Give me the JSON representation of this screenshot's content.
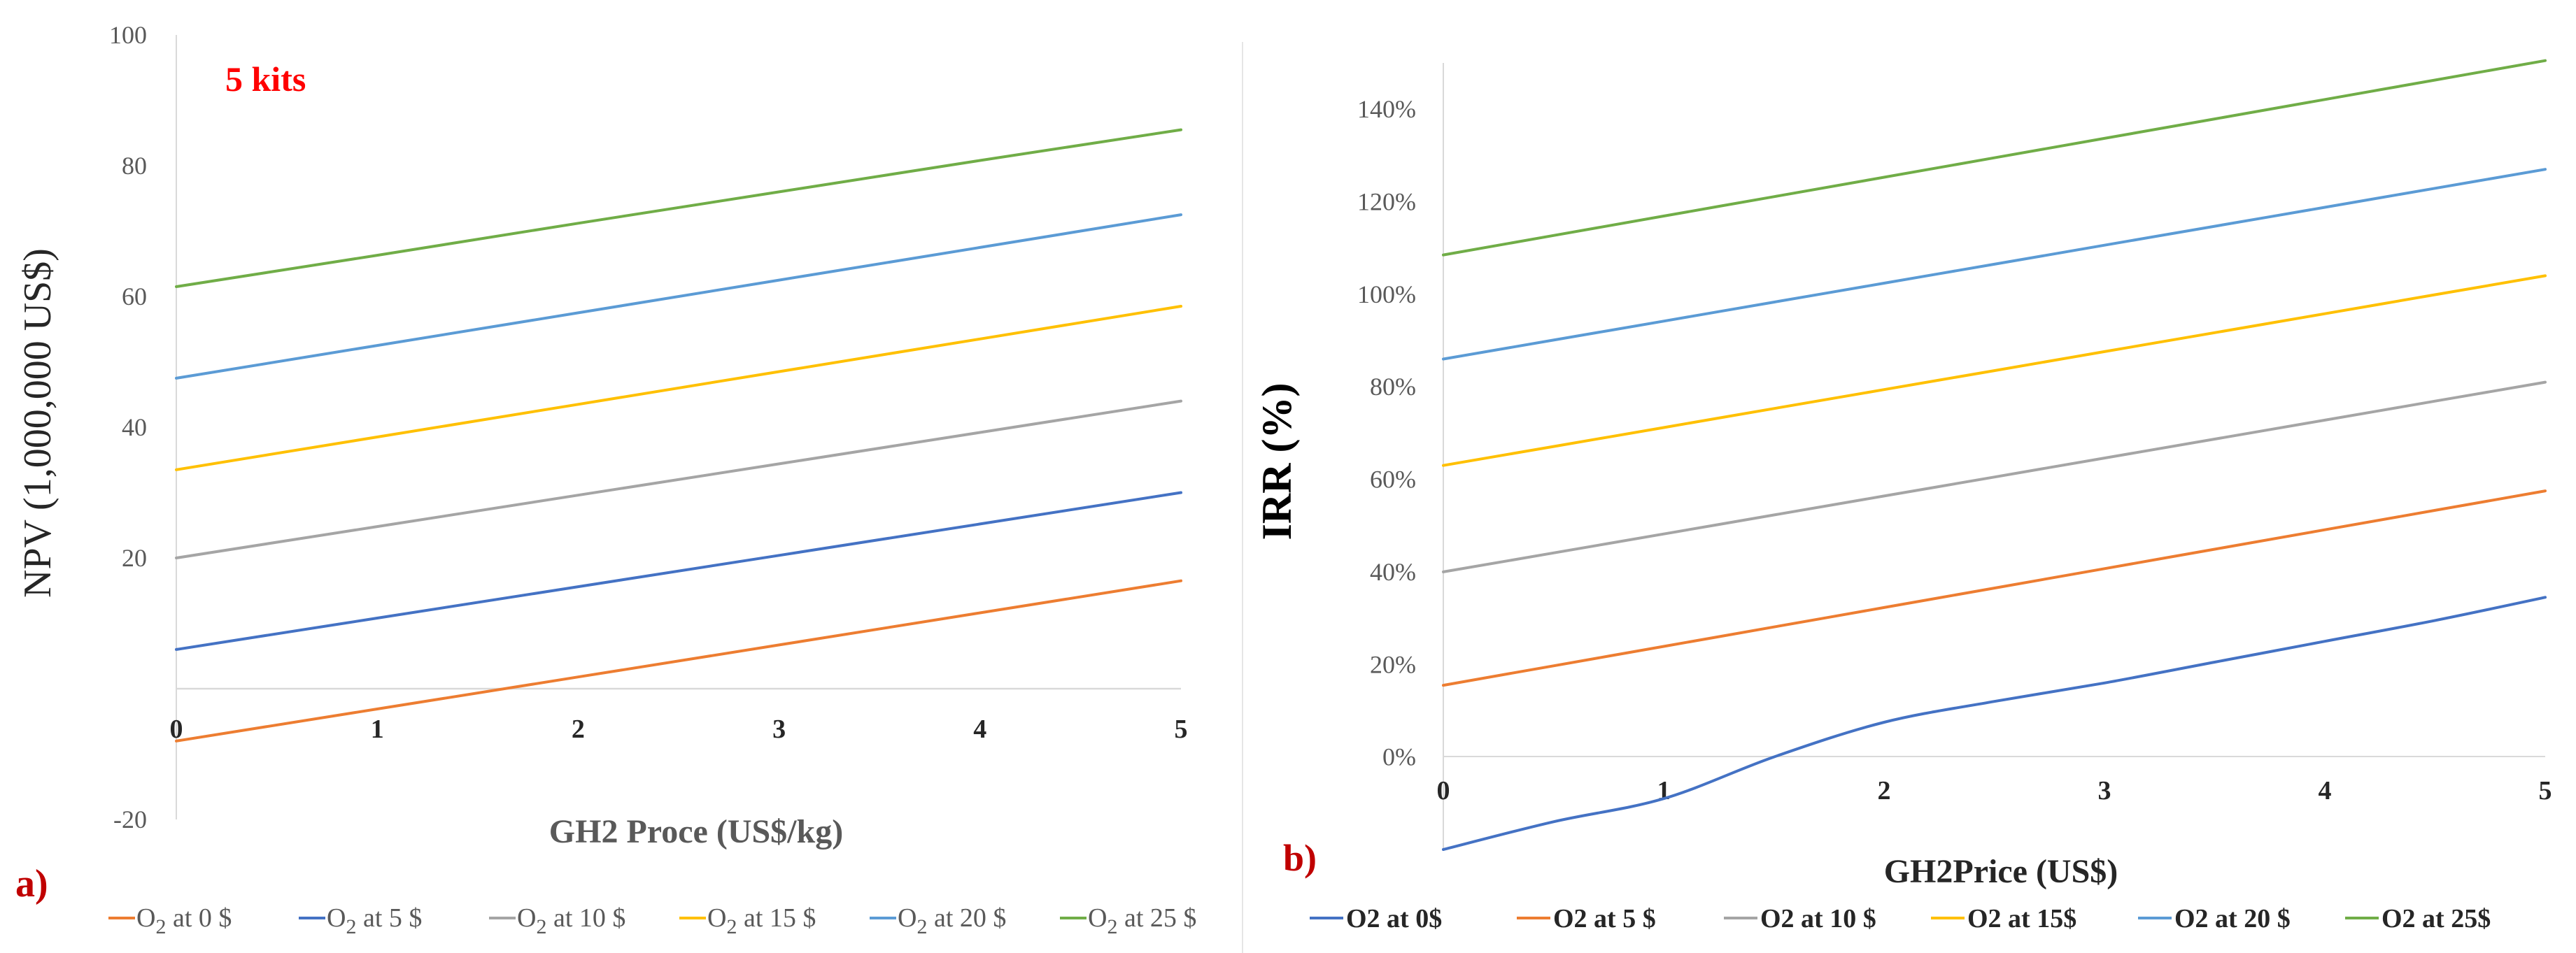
{
  "chart_data": [
    {
      "type": "line",
      "panel_label": "a)",
      "annotation": "5 kits",
      "title": "",
      "xlabel": "GH2 Proce (US$/kg)",
      "ylabel": "NPV (1,000,000 US$)",
      "xlim": [
        0,
        5
      ],
      "ylim": [
        -20,
        100
      ],
      "x_ticks": [
        "0",
        "1",
        "2",
        "3",
        "4",
        "5"
      ],
      "y_ticks": [
        "-20",
        "20",
        "40",
        "60",
        "80",
        "100"
      ],
      "x": [
        0,
        1,
        2,
        3,
        4,
        5
      ],
      "series": [
        {
          "name": "O2 at 0 $",
          "legend_main": "O",
          "legend_sub": "2",
          "legend_rest": " at 0 $",
          "color": "#ED7D31",
          "values": [
            -8,
            -3.1,
            1.8,
            6.7,
            11.6,
            16.5
          ]
        },
        {
          "name": "O2 at 5 $",
          "legend_main": "O",
          "legend_sub": "2",
          "legend_rest": " at 5 $",
          "color": "#4472C4",
          "values": [
            6,
            10.8,
            15.6,
            20.4,
            25.2,
            30
          ]
        },
        {
          "name": "O2 at 10 $",
          "legend_main": "O",
          "legend_sub": "2",
          "legend_rest": " at 10 $",
          "color": "#A5A5A5",
          "values": [
            20,
            24.8,
            29.6,
            34.4,
            39.2,
            44
          ]
        },
        {
          "name": "O2 at 15 $",
          "legend_main": "O",
          "legend_sub": "2",
          "legend_rest": " at 15 $",
          "color": "#FFC000",
          "values": [
            33.5,
            38.5,
            43.5,
            48.5,
            53.5,
            58.5
          ]
        },
        {
          "name": "O2 at 20 $",
          "legend_main": "O",
          "legend_sub": "2",
          "legend_rest": " at 20 $",
          "color": "#5B9BD5",
          "values": [
            47.5,
            52.5,
            57.5,
            62.5,
            67.5,
            72.5
          ]
        },
        {
          "name": "O2 at 25 $",
          "legend_main": "O",
          "legend_sub": "2",
          "legend_rest": " at 25 $",
          "color": "#70AD47",
          "values": [
            61.5,
            66.3,
            71.2,
            76,
            80.8,
            85.5
          ]
        }
      ]
    },
    {
      "type": "line",
      "panel_label": "b)",
      "title": "",
      "xlabel": "GH2Price (US$)",
      "ylabel": "IRR (%)",
      "xlim": [
        0,
        5
      ],
      "ylim": [
        -20,
        150
      ],
      "x_ticks": [
        "0",
        "1",
        "2",
        "3",
        "4",
        "5"
      ],
      "y_ticks": [
        "0%",
        "20%",
        "40%",
        "60%",
        "80%",
        "100%",
        "120%",
        "140%"
      ],
      "x": [
        0,
        0.5,
        1,
        1.5,
        2,
        2.5,
        3,
        3.5,
        4,
        4.5,
        5
      ],
      "series": [
        {
          "name": "O2 at 0$",
          "color": "#4472C4",
          "values": [
            -20,
            -14,
            -9,
            0,
            7.5,
            12,
            16,
            20.5,
            25,
            29.5,
            34.5
          ]
        },
        {
          "name": "O2 at 5 $",
          "color": "#ED7D31",
          "values": [
            15.5,
            19.7,
            23.9,
            28.1,
            32.3,
            36.5,
            40.7,
            44.9,
            49.1,
            53.3,
            57.5
          ]
        },
        {
          "name": "O2 at 10 $",
          "color": "#A5A5A5",
          "values": [
            40,
            44.1,
            48.2,
            52.3,
            56.4,
            60.5,
            64.6,
            68.7,
            72.8,
            76.9,
            81
          ]
        },
        {
          "name": "O2 at 15$",
          "color": "#FFC000",
          "values": [
            63,
            67.1,
            71.2,
            75.3,
            79.4,
            83.5,
            87.6,
            91.7,
            95.8,
            99.9,
            104
          ]
        },
        {
          "name": "O2 at 20 $",
          "color": "#5B9BD5",
          "values": [
            86,
            90.1,
            94.2,
            98.3,
            102.4,
            106.5,
            110.6,
            114.7,
            118.8,
            122.9,
            127
          ]
        },
        {
          "name": "O2 at 25$",
          "color": "#70AD47",
          "values": [
            108.5,
            112.7,
            116.9,
            121.1,
            125.3,
            129.5,
            133.7,
            137.9,
            142.1,
            146.3,
            150.5
          ]
        }
      ]
    }
  ]
}
